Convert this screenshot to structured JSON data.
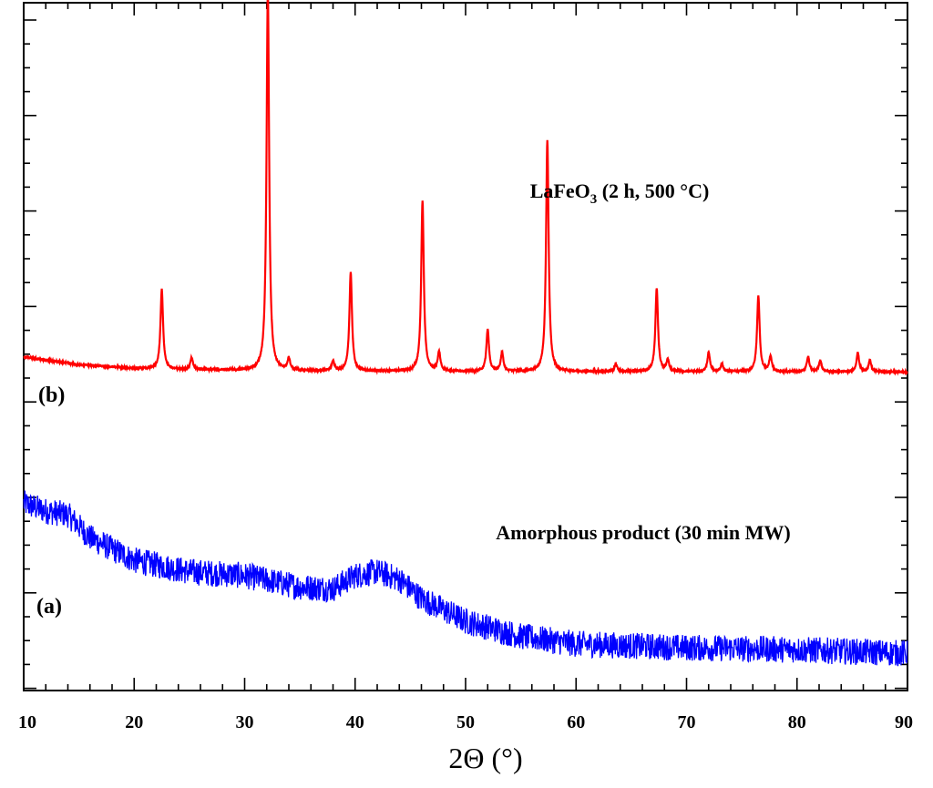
{
  "chart_data": {
    "type": "line",
    "xlabel": "2Θ (°)",
    "xlim": [
      10,
      90
    ],
    "x_ticks": [
      10,
      20,
      30,
      40,
      50,
      60,
      70,
      80,
      90
    ],
    "y_ticks_visible": false,
    "grid": false,
    "series": [
      {
        "name": "(b)",
        "annotation": {
          "main": "LaFeO",
          "sub": "3",
          "rest": " (2 h, 500 °C)"
        },
        "color": "#ff0000",
        "baseline": [
          [
            10,
            0.235
          ],
          [
            15,
            0.215
          ],
          [
            20,
            0.205
          ],
          [
            30,
            0.2
          ],
          [
            40,
            0.198
          ],
          [
            60,
            0.197
          ],
          [
            90,
            0.196
          ]
        ],
        "peaks": [
          {
            "x": 22.5,
            "h": 0.21
          },
          {
            "x": 25.2,
            "h": 0.03
          },
          {
            "x": 32.1,
            "h": 1.0
          },
          {
            "x": 34.0,
            "h": 0.03
          },
          {
            "x": 38.0,
            "h": 0.025
          },
          {
            "x": 39.6,
            "h": 0.26
          },
          {
            "x": 46.1,
            "h": 0.45
          },
          {
            "x": 47.6,
            "h": 0.05
          },
          {
            "x": 52.0,
            "h": 0.11
          },
          {
            "x": 53.3,
            "h": 0.05
          },
          {
            "x": 57.4,
            "h": 0.61
          },
          {
            "x": 63.6,
            "h": 0.02
          },
          {
            "x": 67.3,
            "h": 0.22
          },
          {
            "x": 68.3,
            "h": 0.03
          },
          {
            "x": 72.0,
            "h": 0.05
          },
          {
            "x": 73.2,
            "h": 0.02
          },
          {
            "x": 76.5,
            "h": 0.2
          },
          {
            "x": 77.6,
            "h": 0.04
          },
          {
            "x": 81.0,
            "h": 0.04
          },
          {
            "x": 82.1,
            "h": 0.03
          },
          {
            "x": 85.5,
            "h": 0.05
          },
          {
            "x": 86.6,
            "h": 0.03
          }
        ]
      },
      {
        "name": "(a)",
        "annotation": "Amorphous product (30 min MW)",
        "color": "#0000ff",
        "profile": [
          [
            10,
            -0.15
          ],
          [
            12,
            -0.17
          ],
          [
            14,
            -0.18
          ],
          [
            16,
            -0.24
          ],
          [
            20,
            -0.3
          ],
          [
            25,
            -0.33
          ],
          [
            30,
            -0.34
          ],
          [
            35,
            -0.37
          ],
          [
            38,
            -0.375
          ],
          [
            40,
            -0.34
          ],
          [
            42,
            -0.33
          ],
          [
            44,
            -0.35
          ],
          [
            46,
            -0.4
          ],
          [
            50,
            -0.46
          ],
          [
            55,
            -0.5
          ],
          [
            60,
            -0.52
          ],
          [
            70,
            -0.53
          ],
          [
            80,
            -0.535
          ],
          [
            90,
            -0.545
          ]
        ],
        "noise_amplitude": 0.035
      }
    ]
  }
}
